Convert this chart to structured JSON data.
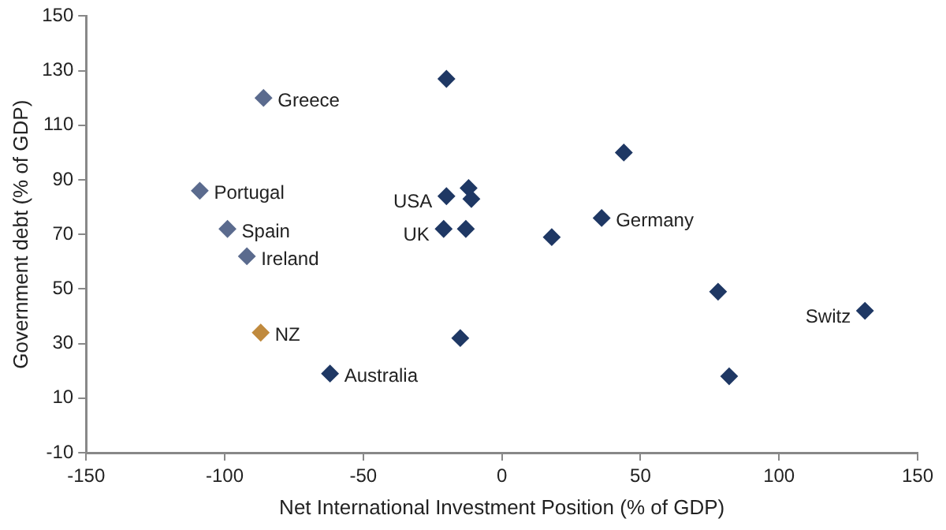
{
  "chart_data": {
    "type": "scatter",
    "xlabel": "Net International Investment Position (% of GDP)",
    "ylabel": "Government debt (% of GDP)",
    "xlim": [
      -150,
      150
    ],
    "xticks": [
      -150,
      -100,
      -50,
      0,
      50,
      100,
      150
    ],
    "ylim": [
      -10,
      150
    ],
    "yticks": [
      -10,
      10,
      30,
      50,
      70,
      90,
      110,
      130,
      150
    ],
    "grid": false,
    "legend": false,
    "marker": "diamond",
    "series": [
      {
        "x": [
          -86,
          -109,
          -99,
          -92,
          -87,
          -62,
          -20,
          -20,
          -12,
          -11,
          -21,
          -13,
          -15,
          44,
          36,
          18,
          78,
          131,
          82
        ],
        "values": [
          120,
          86,
          72,
          62,
          34,
          19,
          127,
          84,
          87,
          83,
          72,
          72,
          32,
          100,
          76,
          69,
          49,
          42,
          18
        ],
        "colors": [
          "#5b6b8e",
          "#5b6b8e",
          "#5b6b8e",
          "#5b6b8e",
          "#c08a3e",
          "#1f3864",
          "#1f3864",
          "#1f3864",
          "#1f3864",
          "#1f3864",
          "#1f3864",
          "#1f3864",
          "#1f3864",
          "#1f3864",
          "#1f3864",
          "#1f3864",
          "#1f3864",
          "#1f3864",
          "#1f3864"
        ]
      }
    ],
    "annotations": [
      {
        "text": "Greece",
        "x": -86,
        "y": 120
      },
      {
        "text": "Portugal",
        "x": -109,
        "y": 86
      },
      {
        "text": "Spain",
        "x": -99,
        "y": 72
      },
      {
        "text": "Ireland",
        "x": -92,
        "y": 62
      },
      {
        "text": "NZ",
        "x": -87,
        "y": 34
      },
      {
        "text": "Australia",
        "x": -62,
        "y": 19
      },
      {
        "text": "USA",
        "x": -20,
        "y": 84
      },
      {
        "text": "UK",
        "x": -21,
        "y": 72
      },
      {
        "text": "Germany",
        "x": 36,
        "y": 76
      },
      {
        "text": "Switz",
        "x": 131,
        "y": 42
      }
    ]
  }
}
